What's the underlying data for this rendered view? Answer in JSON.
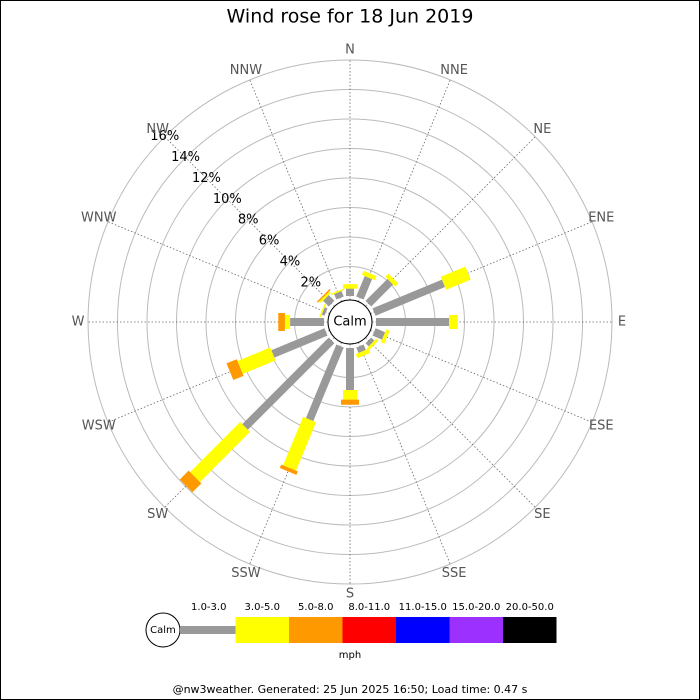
{
  "chart_data": {
    "type": "windrose",
    "title": "Wind rose for 18 Jun 2019",
    "directions": [
      "N",
      "NNE",
      "NE",
      "ENE",
      "E",
      "ESE",
      "SE",
      "SSE",
      "S",
      "SSW",
      "SW",
      "WSW",
      "W",
      "WNW",
      "NW",
      "NNW"
    ],
    "series": [
      {
        "name": "1.0-3.0",
        "color": "#999999",
        "values": [
          0.5,
          1.5,
          2.1,
          5.1,
          4.95,
          0.7,
          0.3,
          0.4,
          2.85,
          5.4,
          8.3,
          3.9,
          2.3,
          0.2,
          0.55,
          0.4
        ]
      },
      {
        "name": "3.0-5.0",
        "color": "#ffff00",
        "values": [
          0.3,
          0.3,
          0.3,
          1.8,
          0.6,
          0.25,
          0.2,
          0.3,
          0.65,
          3.55,
          4.8,
          2.4,
          0.35,
          0.1,
          0.15,
          0.1
        ]
      },
      {
        "name": "5.0-8.0",
        "color": "#ff9900",
        "values": [
          0,
          0,
          0,
          0,
          0,
          0,
          0,
          0,
          0.35,
          0.25,
          0.85,
          0.75,
          0.45,
          0,
          0.1,
          0
        ]
      },
      {
        "name": "8.0-11.0",
        "color": "#ff0000",
        "values": [
          0,
          0,
          0,
          0,
          0,
          0,
          0,
          0,
          0,
          0,
          0,
          0,
          0,
          0,
          0,
          0
        ]
      },
      {
        "name": "11.0-15.0",
        "color": "#0000ff",
        "values": [
          0,
          0,
          0,
          0,
          0,
          0,
          0,
          0,
          0,
          0,
          0,
          0,
          0,
          0,
          0,
          0
        ]
      },
      {
        "name": "15.0-20.0",
        "color": "#9b30ff",
        "values": [
          0,
          0,
          0,
          0,
          0,
          0,
          0,
          0,
          0,
          0,
          0,
          0,
          0,
          0,
          0,
          0
        ]
      },
      {
        "name": "20.0-50.0",
        "color": "#000000",
        "values": [
          0,
          0,
          0,
          0,
          0,
          0,
          0,
          0,
          0,
          0,
          0,
          0,
          0,
          0,
          0,
          0
        ]
      }
    ],
    "rlim": [
      0,
      16
    ],
    "rticks": [
      {
        "value": 2,
        "label": "2%"
      },
      {
        "value": 4,
        "label": "4%"
      },
      {
        "value": 6,
        "label": "6%"
      },
      {
        "value": 8,
        "label": "8%"
      },
      {
        "value": 10,
        "label": "10%"
      },
      {
        "value": 12,
        "label": "12%"
      },
      {
        "value": 14,
        "label": "14%"
      },
      {
        "value": 16,
        "label": "16%"
      }
    ],
    "calm_label": "Calm",
    "legend_title": "mph",
    "footer": "@nw3weather. Generated: 25 Jun 2025 16:50; Load time: 0.47 s"
  }
}
